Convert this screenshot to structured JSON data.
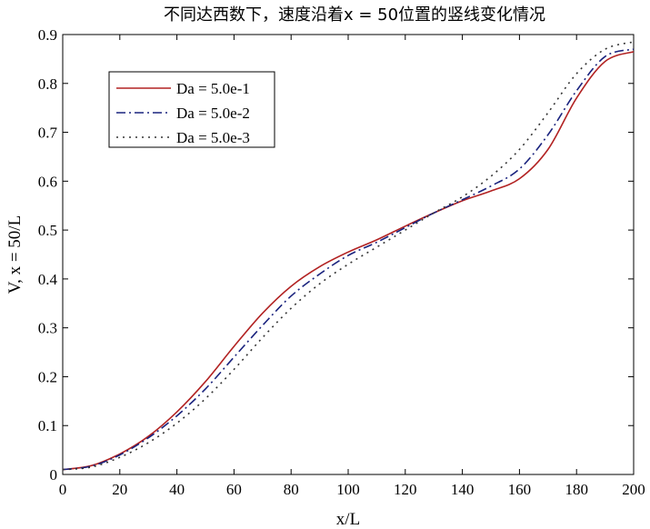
{
  "chart_data": {
    "type": "line",
    "title": "不同达西数下，速度沿着x = 50位置的竖线变化情况",
    "xlabel": "x/L",
    "ylabel": "V, x = 50/L",
    "xlim": [
      0,
      200
    ],
    "ylim": [
      0,
      0.9
    ],
    "xticks": [
      "0",
      "20",
      "40",
      "60",
      "80",
      "100",
      "120",
      "140",
      "160",
      "180",
      "200"
    ],
    "yticks": [
      "0",
      "0.1",
      "0.2",
      "0.3",
      "0.4",
      "0.5",
      "0.6",
      "0.7",
      "0.8",
      "0.9"
    ],
    "grid": false,
    "legend_position": "top-left",
    "x": [
      0,
      10,
      20,
      30,
      40,
      50,
      60,
      70,
      80,
      90,
      100,
      110,
      120,
      130,
      140,
      150,
      160,
      170,
      180,
      190,
      200
    ],
    "series": [
      {
        "name": "Da = 5.0e-1",
        "color": "#b22222",
        "style": "solid",
        "values": [
          0.01,
          0.018,
          0.042,
          0.078,
          0.128,
          0.19,
          0.262,
          0.33,
          0.385,
          0.425,
          0.455,
          0.48,
          0.508,
          0.535,
          0.56,
          0.58,
          0.605,
          0.665,
          0.77,
          0.845,
          0.865
        ]
      },
      {
        "name": "Da = 5.0e-2",
        "color": "#1a237e",
        "style": "dashdot",
        "values": [
          0.01,
          0.017,
          0.04,
          0.075,
          0.12,
          0.175,
          0.24,
          0.305,
          0.365,
          0.41,
          0.448,
          0.475,
          0.505,
          0.535,
          0.562,
          0.59,
          0.625,
          0.695,
          0.785,
          0.855,
          0.87
        ]
      },
      {
        "name": "Da = 5.0e-3",
        "color": "#333333",
        "style": "dotted",
        "values": [
          0.01,
          0.015,
          0.035,
          0.065,
          0.105,
          0.155,
          0.215,
          0.28,
          0.34,
          0.39,
          0.43,
          0.465,
          0.5,
          0.535,
          0.568,
          0.61,
          0.665,
          0.74,
          0.82,
          0.87,
          0.885
        ]
      }
    ]
  }
}
